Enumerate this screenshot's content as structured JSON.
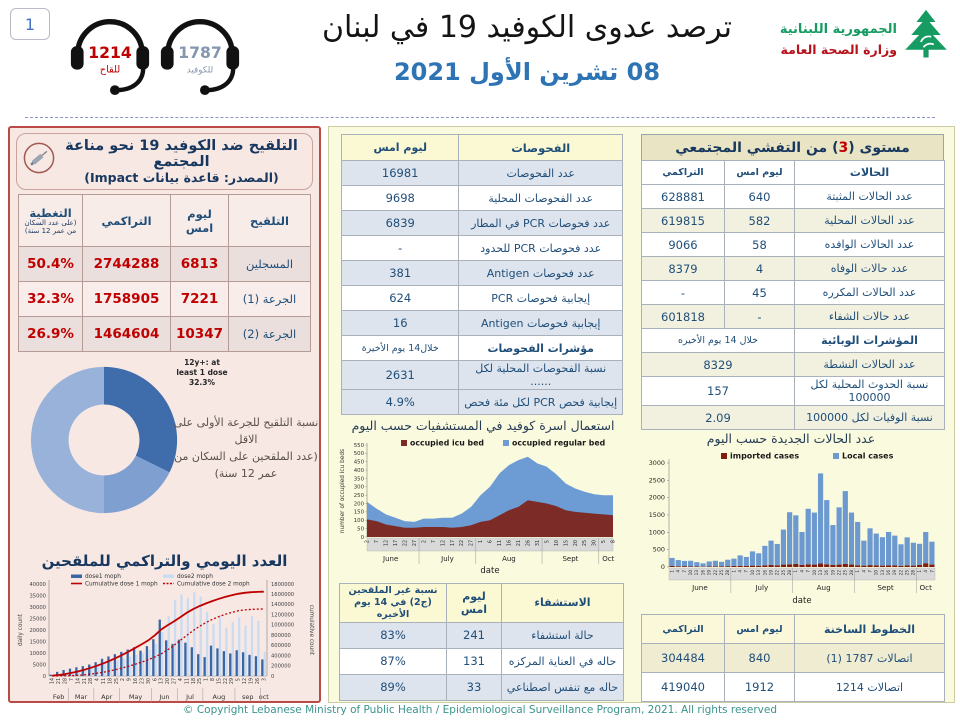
{
  "page": {
    "number": "1",
    "title": "ترصد عدوى الكوفيد 19 في لبنان",
    "date": "08 تشرين الأول 2021",
    "footer": "© Copyright Lebanese Ministry of Public Health / Epidemiological Surveillance Program, 2021. All rights reserved"
  },
  "logo": {
    "line1": "الجمهورية اللبنانية",
    "line2": "وزارة الصحة العامة"
  },
  "hotline_icons": [
    {
      "number": "1214",
      "label": "للقاح",
      "color": "#c00000"
    },
    {
      "number": "1787",
      "label": "للكوفيد",
      "color": "#8496b0"
    }
  ],
  "colors": {
    "accent_red": "#c00000",
    "navy": "#1f4e79",
    "pink_border": "#b94a45",
    "dose1_bar": "#3a66a3",
    "dose2_bar": "#c9dcf3",
    "icu_area": "#7c2b27",
    "regular_area": "#6d9bd4",
    "imported_bar": "#7e1d10",
    "local_bar": "#6b99d0"
  },
  "vaccination_panel": {
    "title": "التلقيح ضد الكوفيد 19  نحو مناعة المجتمع",
    "subtitle": "(المصدر: قاعدة بيانات Impact)",
    "table": {
      "headers": [
        "التلقيح",
        "ليوم امس",
        "التراكمي",
        "التغطية"
      ],
      "coverage_note": "(على عدد السكان من عمر 12 سنة)",
      "rows": [
        [
          "المسجلين",
          "6813",
          "2744288",
          "50.4%"
        ],
        [
          "الجرعة (1)",
          "7221",
          "1758905",
          "32.3%"
        ],
        [
          "الجرعة (2)",
          "10347",
          "1464604",
          "26.9%"
        ]
      ]
    },
    "donut_annotation": "12y+: at least 1 dose 32.3%",
    "donut_caption_l1": "نسبة التلقيح للجرعة الأولى على الاقل",
    "donut_caption_l2": "(عدد الملقحين على السكان من عمر 12 سنة)",
    "chart_caption": "العدد اليومي والتراكمي للملقحين"
  },
  "tests_table": {
    "headers": [
      "الفحوصات",
      "ليوم امس"
    ],
    "rows": [
      [
        "عدد الفحوصات",
        "16981"
      ],
      [
        "عدد الفحوصات المحلية",
        "9698"
      ],
      [
        "عدد فحوصات PCR في المطار",
        "6839"
      ],
      [
        "عدد فحوصات PCR للحدود",
        "-"
      ],
      [
        "عدد فحوصات Antigen",
        "381"
      ],
      [
        "إيجابية فحوصات PCR",
        "624"
      ],
      [
        "إيجابية فحوصات Antigen",
        "16"
      ]
    ],
    "subheader": [
      "مؤشرات الفحوصات",
      "خلال14 يوم الأخيرة"
    ],
    "indicator_rows": [
      [
        "نسبة الفحوصات المحلية لكل ......",
        "2631"
      ],
      [
        "إيجابية فحص PCR لكل مئة فحص",
        "4.9%"
      ]
    ]
  },
  "community_table": {
    "title_parts": [
      "مستوى (",
      "3",
      ") من التفشي المجتمعي"
    ],
    "headers": [
      "الحالات",
      "ليوم امس",
      "التراكمي"
    ],
    "rows": [
      [
        "عدد الحالات المثبتة",
        "640",
        "628881"
      ],
      [
        "عدد الحالات المحلية",
        "582",
        "619815"
      ],
      [
        "عدد الحالات الوافده",
        "58",
        "9066"
      ],
      [
        "عدد حالات الوفاه",
        "4",
        "8379"
      ],
      [
        "عدد الحالات المكرره",
        "45",
        "-"
      ],
      [
        "عدد حالات الشفاء",
        "-",
        "601818"
      ]
    ],
    "subheader": [
      "المؤشرات الوبائية",
      "خلال 14 يوم الأخيره"
    ],
    "indicator_rows": [
      [
        "عدد الحالات النشطة",
        "8329"
      ],
      [
        "نسبة الحدوث المحلية لكل 100000",
        "157"
      ],
      [
        "نسبة الوفيات لكل 100000",
        "2.09"
      ]
    ]
  },
  "hospital_table": {
    "headers": [
      "الاستشفاء",
      "ليوم امس",
      "نسبة غير الملقحين (ج2) في 14 يوم الأخيره"
    ],
    "rows": [
      [
        "حالة استشفاء",
        "241",
        "83%"
      ],
      [
        "حاله في العناية المركزه",
        "131",
        "87%"
      ],
      [
        "حاله مع تنفس اصطناعي",
        "33",
        "89%"
      ]
    ]
  },
  "hotlines_table": {
    "headers": [
      "الخطوط الساخنة",
      "ليوم امس",
      "التراكمي"
    ],
    "rows": [
      [
        "اتصالات 1787 (1)",
        "840",
        "304484"
      ],
      [
        "اتصالات 1214",
        "1912",
        "419040"
      ]
    ]
  },
  "chart_data": [
    {
      "name": "first_dose_coverage_donut",
      "type": "pie",
      "title": "نسبة التلقيح للجرعة الأولى على الاقل (عدد الملقحين على السكان من عمر 12 سنة)",
      "annotation": "12y+: at least 1 dose 32.3%",
      "segments": [
        {
          "label": "12y+: at least 1 dose",
          "value": 32.3,
          "color": "#3f6cab"
        },
        {
          "label": "",
          "value": 17.7,
          "color": "#7f9fd1"
        },
        {
          "label": "",
          "value": 50.0,
          "color": "#98b2da"
        }
      ]
    },
    {
      "name": "vaccination_daily_cumulative",
      "type": "bar+line",
      "title": "العدد اليومي والتراكمي للملقحين",
      "ylabel": "daily count",
      "y2label": "cumulative count",
      "ylim": [
        0,
        40000
      ],
      "y2lim": [
        0,
        1800000
      ],
      "ystep": 5000,
      "y2step": 200000,
      "months": [
        "Feb",
        "Mar",
        "Apr",
        "May",
        "Jun",
        "Jul",
        "Aug",
        "sep",
        "oct"
      ],
      "month_spans": [
        3,
        4,
        4,
        5,
        4,
        4,
        5,
        4,
        1
      ],
      "day_labels": [
        "14",
        "21",
        "28",
        "7",
        "14",
        "21",
        "28",
        "4",
        "11",
        "18",
        "25",
        "2",
        "9",
        "16",
        "23",
        "30",
        "6",
        "13",
        "20",
        "27",
        "4",
        "11",
        "18",
        "25",
        "1",
        "8",
        "15",
        "22",
        "29",
        "5",
        "12",
        "19",
        "26",
        "3"
      ],
      "series": [
        {
          "name": "dose1  moph",
          "kind": "bar",
          "color": "#3a66a3",
          "values": [
            600,
            1800,
            2600,
            3200,
            3800,
            4300,
            5000,
            6000,
            7500,
            8500,
            9500,
            10500,
            11500,
            12500,
            11000,
            13000,
            16000,
            24500,
            15500,
            14000,
            15800,
            14500,
            12500,
            9500,
            8200,
            13200,
            12000,
            10800,
            9800,
            11200,
            10300,
            9200,
            8600,
            7200
          ]
        },
        {
          "name": "dose2 moph",
          "kind": "bar",
          "color": "#c9dcf3",
          "values": [
            0,
            300,
            900,
            1800,
            2600,
            3400,
            4200,
            5000,
            5800,
            6400,
            7000,
            7600,
            8400,
            9200,
            10000,
            11500,
            14000,
            19000,
            26000,
            33000,
            35500,
            34000,
            36500,
            34500,
            28000,
            22500,
            26500,
            21000,
            23500,
            25500,
            22000,
            26000,
            24000,
            10500
          ]
        },
        {
          "name": "Cumulative dose 1 moph",
          "kind": "line",
          "style": "solid",
          "color": "#c00000",
          "axis": "y2",
          "values": [
            6000,
            19000,
            38000,
            61000,
            89000,
            122000,
            160000,
            202000,
            249000,
            300000,
            356000,
            417000,
            483000,
            553000,
            624000,
            699000,
            797000,
            910000,
            994000,
            1069000,
            1153000,
            1238000,
            1308000,
            1369000,
            1421000,
            1468000,
            1510000,
            1547000,
            1580000,
            1608000,
            1627000,
            1639000,
            1646000,
            1650000
          ]
        },
        {
          "name": "Cumulative dose 2 moph",
          "kind": "line",
          "style": "dotted",
          "color": "#c00000",
          "axis": "y2",
          "values": [
            0,
            1000,
            3000,
            7000,
            14000,
            24000,
            38000,
            55000,
            75000,
            99000,
            127000,
            158000,
            193000,
            232000,
            274000,
            319000,
            371000,
            434000,
            510000,
            599000,
            698000,
            796000,
            890000,
            975000,
            1046000,
            1109000,
            1163000,
            1208000,
            1245000,
            1275000,
            1293000,
            1303000,
            1308000,
            1310000
          ]
        }
      ]
    },
    {
      "name": "hospital_bed_occupancy",
      "type": "area",
      "title": "استعمال اسرة كوفيد في المستشفيات حسب اليوم",
      "ylabel": "number of occupied icu beds",
      "xlabel": "date",
      "ylim": [
        0,
        550
      ],
      "ystep": 50,
      "months": [
        "June",
        "July",
        "Aug",
        "Sept",
        "Oct"
      ],
      "month_spans": [
        6,
        6,
        7,
        6,
        2
      ],
      "day_labels": [
        "2",
        "7",
        "12",
        "17",
        "22",
        "27",
        "2",
        "7",
        "12",
        "17",
        "22",
        "27",
        "1",
        "6",
        "11",
        "16",
        "21",
        "26",
        "31",
        "5",
        "10",
        "15",
        "20",
        "25",
        "30",
        "5",
        "8"
      ],
      "series": [
        {
          "name": "occupied icu bed",
          "color": "#7c2b27",
          "values": [
            105,
            95,
            75,
            65,
            55,
            55,
            60,
            60,
            60,
            55,
            60,
            70,
            90,
            100,
            130,
            160,
            180,
            220,
            210,
            200,
            185,
            160,
            150,
            145,
            140,
            135,
            130
          ]
        },
        {
          "name": "occupied regular bed",
          "color": "#6d9bd4",
          "values": [
            105,
            75,
            60,
            50,
            40,
            35,
            50,
            50,
            55,
            60,
            80,
            110,
            160,
            200,
            250,
            270,
            280,
            260,
            230,
            220,
            190,
            160,
            140,
            125,
            115,
            115,
            120
          ]
        }
      ]
    },
    {
      "name": "new_cases_daily",
      "type": "bar",
      "title": "عدد الحالات الجديدة حسب اليوم",
      "xlabel": "date",
      "ylim": [
        0,
        3000
      ],
      "ystep": 500,
      "months": [
        "June",
        "July",
        "Aug",
        "Sept",
        "Oct"
      ],
      "month_spans": [
        10,
        10,
        10,
        10,
        3
      ],
      "day_labels": [
        "1",
        "4",
        "7",
        "10",
        "13",
        "16",
        "19",
        "22",
        "25",
        "28",
        "1",
        "4",
        "7",
        "10",
        "13",
        "16",
        "19",
        "22",
        "25",
        "28",
        "1",
        "4",
        "7",
        "10",
        "13",
        "16",
        "19",
        "22",
        "25",
        "28",
        "1",
        "4",
        "7",
        "10",
        "13",
        "16",
        "19",
        "22",
        "25",
        "28",
        "1",
        "4",
        "7"
      ],
      "series": [
        {
          "name": "imported cases",
          "color": "#7e1d10",
          "values": [
            30,
            20,
            25,
            15,
            20,
            10,
            15,
            20,
            15,
            25,
            30,
            35,
            30,
            40,
            35,
            50,
            60,
            45,
            70,
            80,
            90,
            60,
            80,
            70,
            100,
            80,
            60,
            70,
            90,
            70,
            50,
            40,
            55,
            45,
            40,
            50,
            45,
            35,
            45,
            40,
            60,
            110,
            70
          ]
        },
        {
          "name": "Local cases",
          "color": "#6b99d0",
          "values": [
            230,
            180,
            150,
            165,
            120,
            95,
            145,
            160,
            135,
            185,
            210,
            300,
            260,
            410,
            360,
            560,
            700,
            620,
            1010,
            1500,
            1400,
            950,
            1600,
            1500,
            2600,
            1850,
            1150,
            1650,
            2100,
            1500,
            1250,
            720,
            1060,
            920,
            820,
            960,
            860,
            620,
            810,
            660,
            610,
            900,
            660
          ]
        }
      ]
    }
  ]
}
